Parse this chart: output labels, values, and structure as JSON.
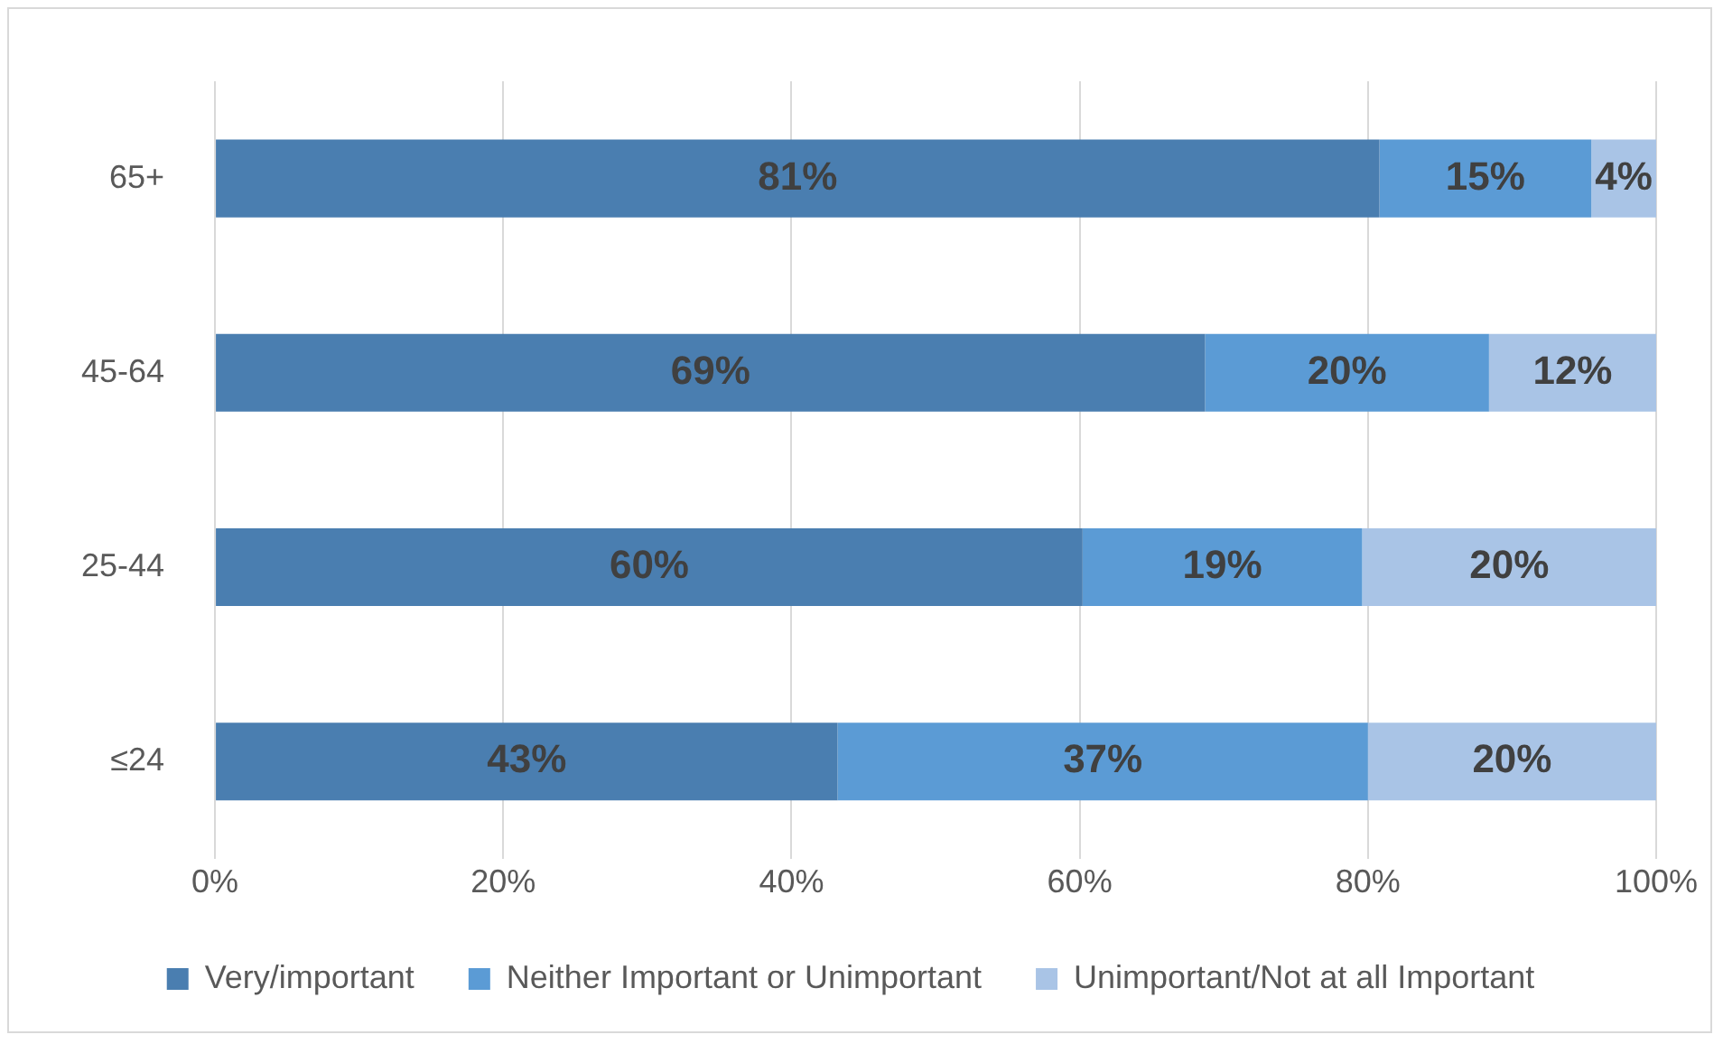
{
  "chart_data": {
    "type": "bar",
    "orientation": "horizontal",
    "stacked": true,
    "categories": [
      "65+",
      "45-64",
      "25-44",
      "≤24"
    ],
    "series": [
      {
        "name": "Very/important",
        "color": "#4a7eb0",
        "values": [
          80.8,
          68.7,
          60.2,
          43.2
        ],
        "value_labels": [
          "81%",
          "69%",
          "60%",
          "43%"
        ]
      },
      {
        "name": "Neither Important or Unimportant",
        "color": "#5b9bd5",
        "values": [
          14.7,
          19.7,
          19.4,
          36.8
        ],
        "value_labels": [
          "15%",
          "20%",
          "19%",
          "37%"
        ]
      },
      {
        "name": "Unimportant/Not at all Important",
        "color": "#a9c4e6",
        "values": [
          4.5,
          11.6,
          20.4,
          20.0
        ],
        "value_labels": [
          "4%",
          "12%",
          "20%",
          "20%"
        ]
      }
    ],
    "xlim": [
      0,
      100
    ],
    "xticks": [
      {
        "value": 0,
        "label": "0%"
      },
      {
        "value": 20,
        "label": "20%"
      },
      {
        "value": 40,
        "label": "40%"
      },
      {
        "value": 60,
        "label": "60%"
      },
      {
        "value": 80,
        "label": "80%"
      },
      {
        "value": 100,
        "label": "100%"
      }
    ],
    "grid": "x",
    "legend": "bottom"
  }
}
